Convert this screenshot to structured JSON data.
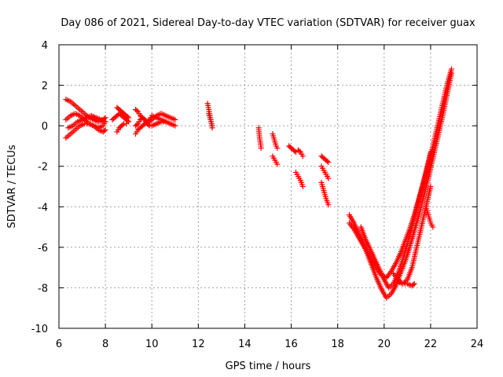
{
  "chart_data": {
    "type": "scatter",
    "title": "Day 086 of 2021, Sidereal Day-to-day VTEC variation (SDTVAR) for receiver guax",
    "xlabel": "GPS time / hours",
    "ylabel": "SDTVAR / TECUs",
    "xlim": [
      6,
      24
    ],
    "ylim": [
      -10,
      4
    ],
    "x_ticks": [
      6,
      8,
      10,
      12,
      14,
      16,
      18,
      20,
      22,
      24
    ],
    "y_ticks": [
      4,
      2,
      0,
      -2,
      -4,
      -6,
      -8,
      -10
    ],
    "x_tick_labels": [
      "6",
      "8",
      "10",
      "12",
      "14",
      "16",
      "18",
      "20",
      "22",
      "24"
    ],
    "y_tick_labels": [
      "4",
      "2",
      "0",
      "-2",
      "-4",
      "-6",
      "-8",
      "-10"
    ],
    "grid": true,
    "marker": "+",
    "color": "#ff0000",
    "series": [
      {
        "name": "SDTVAR",
        "segments": [
          {
            "x": [
              6.3,
              6.5,
              6.7,
              6.9,
              7.1,
              7.3,
              7.5,
              7.7,
              7.9,
              8.0
            ],
            "y": [
              1.3,
              1.2,
              1.0,
              0.8,
              0.6,
              0.4,
              0.3,
              0.2,
              0.3,
              0.4
            ]
          },
          {
            "x": [
              6.3,
              6.5,
              6.7,
              6.9,
              7.1,
              7.3,
              7.5,
              7.7,
              7.9,
              8.0
            ],
            "y": [
              0.3,
              0.5,
              0.6,
              0.5,
              0.3,
              0.1,
              0.0,
              -0.1,
              0.0,
              0.2
            ]
          },
          {
            "x": [
              6.3,
              6.5,
              6.7,
              6.9,
              7.1,
              7.3,
              7.5,
              7.7,
              7.9,
              8.0
            ],
            "y": [
              -0.6,
              -0.4,
              -0.2,
              0.0,
              0.1,
              0.1,
              0.0,
              -0.2,
              -0.3,
              -0.2
            ]
          },
          {
            "x": [
              6.4,
              6.6,
              6.8,
              7.0,
              7.2,
              7.4,
              7.6,
              7.8,
              8.0
            ],
            "y": [
              -0.1,
              0.0,
              0.2,
              0.3,
              0.4,
              0.5,
              0.4,
              0.3,
              0.2
            ]
          },
          {
            "x": [
              8.3,
              8.4,
              8.5,
              8.6,
              8.7,
              8.8,
              8.9,
              9.0
            ],
            "y": [
              0.3,
              0.4,
              0.5,
              0.6,
              0.5,
              0.4,
              0.3,
              0.2
            ]
          },
          {
            "x": [
              8.5,
              8.6,
              8.7,
              8.8,
              8.9,
              9.0
            ],
            "y": [
              0.9,
              0.8,
              0.7,
              0.6,
              0.5,
              0.4
            ]
          },
          {
            "x": [
              8.5,
              8.6,
              8.7,
              8.8,
              8.9
            ],
            "y": [
              -0.3,
              -0.1,
              0.0,
              0.1,
              0.1
            ]
          },
          {
            "x": [
              9.3,
              9.4,
              9.5,
              9.6,
              9.7,
              9.8,
              9.9,
              10.0,
              10.2,
              10.4,
              10.6,
              10.8,
              11.0
            ],
            "y": [
              0.8,
              0.7,
              0.5,
              0.4,
              0.3,
              0.2,
              0.2,
              0.3,
              0.5,
              0.6,
              0.5,
              0.4,
              0.3
            ]
          },
          {
            "x": [
              9.3,
              9.4,
              9.5,
              9.6,
              9.7,
              9.8,
              9.9,
              10.0,
              10.2,
              10.4,
              10.6,
              10.8,
              11.0
            ],
            "y": [
              0.0,
              0.1,
              0.3,
              0.4,
              0.3,
              0.1,
              0.0,
              0.0,
              0.1,
              0.2,
              0.2,
              0.1,
              0.0
            ]
          },
          {
            "x": [
              9.3,
              9.4,
              9.5,
              9.6,
              9.7,
              9.8,
              9.9,
              10.0,
              10.2,
              10.4,
              10.6
            ],
            "y": [
              -0.4,
              -0.2,
              -0.1,
              0.0,
              0.1,
              0.2,
              0.3,
              0.5,
              0.4,
              0.3,
              0.2
            ]
          },
          {
            "x": [
              12.4,
              12.45,
              12.5,
              12.55,
              12.6
            ],
            "y": [
              1.1,
              0.8,
              0.5,
              0.2,
              0.0
            ]
          },
          {
            "x": [
              12.45,
              12.5,
              12.55,
              12.6
            ],
            "y": [
              0.6,
              0.4,
              0.2,
              -0.1
            ]
          },
          {
            "x": [
              14.6,
              14.62,
              14.65,
              14.68,
              14.7
            ],
            "y": [
              -0.1,
              -0.4,
              -0.7,
              -0.9,
              -1.1
            ]
          },
          {
            "x": [
              15.2,
              15.25,
              15.3,
              15.35,
              15.4
            ],
            "y": [
              -0.4,
              -0.6,
              -0.8,
              -1.0,
              -1.1
            ]
          },
          {
            "x": [
              15.2,
              15.25,
              15.3,
              15.35,
              15.4
            ],
            "y": [
              -1.5,
              -1.6,
              -1.7,
              -1.8,
              -1.9
            ]
          },
          {
            "x": [
              15.9,
              16.0,
              16.1,
              16.2
            ],
            "y": [
              -1.0,
              -1.1,
              -1.2,
              -1.3
            ]
          },
          {
            "x": [
              16.3,
              16.4,
              16.5
            ],
            "y": [
              -1.2,
              -1.3,
              -1.5
            ]
          },
          {
            "x": [
              16.2,
              16.3,
              16.4,
              16.5
            ],
            "y": [
              -2.3,
              -2.5,
              -2.7,
              -3.0
            ]
          },
          {
            "x": [
              17.3,
              17.4,
              17.5,
              17.6
            ],
            "y": [
              -1.5,
              -1.6,
              -1.7,
              -1.8
            ]
          },
          {
            "x": [
              17.3,
              17.4,
              17.5,
              17.6
            ],
            "y": [
              -2.0,
              -2.2,
              -2.4,
              -2.6
            ]
          },
          {
            "x": [
              17.3,
              17.4,
              17.5,
              17.6
            ],
            "y": [
              -2.8,
              -3.2,
              -3.6,
              -3.9
            ]
          },
          {
            "x": [
              18.5,
              18.7,
              18.9,
              19.1,
              19.3,
              19.5,
              19.7,
              19.9,
              20.1,
              20.3,
              20.5,
              20.7,
              20.9,
              21.1,
              21.3,
              21.5,
              21.7,
              21.9,
              22.1,
              22.3,
              22.5,
              22.7,
              22.9
            ],
            "y": [
              -4.4,
              -4.8,
              -5.3,
              -5.8,
              -6.4,
              -7.0,
              -7.6,
              -8.1,
              -8.5,
              -8.3,
              -7.9,
              -7.3,
              -6.7,
              -6.0,
              -5.2,
              -4.4,
              -3.5,
              -2.6,
              -1.6,
              -0.6,
              0.4,
              1.5,
              2.6
            ]
          },
          {
            "x": [
              18.5,
              18.7,
              18.9,
              19.1,
              19.3,
              19.5,
              19.7,
              19.9,
              20.1,
              20.3,
              20.5,
              20.7,
              20.9,
              21.1,
              21.3,
              21.5,
              21.7,
              21.9,
              22.1,
              22.3,
              22.5,
              22.7,
              22.9
            ],
            "y": [
              -4.8,
              -5.1,
              -5.5,
              -5.9,
              -6.3,
              -6.7,
              -7.1,
              -7.4,
              -7.5,
              -7.2,
              -6.8,
              -6.3,
              -5.7,
              -5.1,
              -4.4,
              -3.6,
              -2.8,
              -1.9,
              -1.0,
              0.0,
              1.0,
              2.0,
              2.8
            ]
          },
          {
            "x": [
              19.0,
              19.2,
              19.4,
              19.6,
              19.8,
              20.0,
              20.2,
              20.4,
              20.6,
              20.8,
              21.0,
              21.2,
              21.4,
              21.6,
              21.8,
              22.0
            ],
            "y": [
              -5.0,
              -5.6,
              -6.1,
              -6.6,
              -7.1,
              -7.6,
              -8.0,
              -7.8,
              -7.3,
              -6.6,
              -5.8,
              -5.0,
              -4.1,
              -3.2,
              -2.3,
              -1.3
            ]
          },
          {
            "x": [
              20.4,
              20.6,
              20.8,
              21.0,
              21.2,
              21.4,
              21.6,
              21.8,
              22.0
            ],
            "y": [
              -7.3,
              -7.6,
              -7.8,
              -7.6,
              -7.0,
              -6.0,
              -5.0,
              -4.0,
              -3.0
            ]
          },
          {
            "x": [
              20.6,
              20.8,
              21.0,
              21.2,
              21.3
            ],
            "y": [
              -7.7,
              -7.8,
              -7.8,
              -7.9,
              -7.8
            ]
          },
          {
            "x": [
              21.8,
              21.9,
              22.0,
              22.1
            ],
            "y": [
              -4.0,
              -4.4,
              -4.8,
              -5.0
            ]
          }
        ]
      }
    ]
  }
}
